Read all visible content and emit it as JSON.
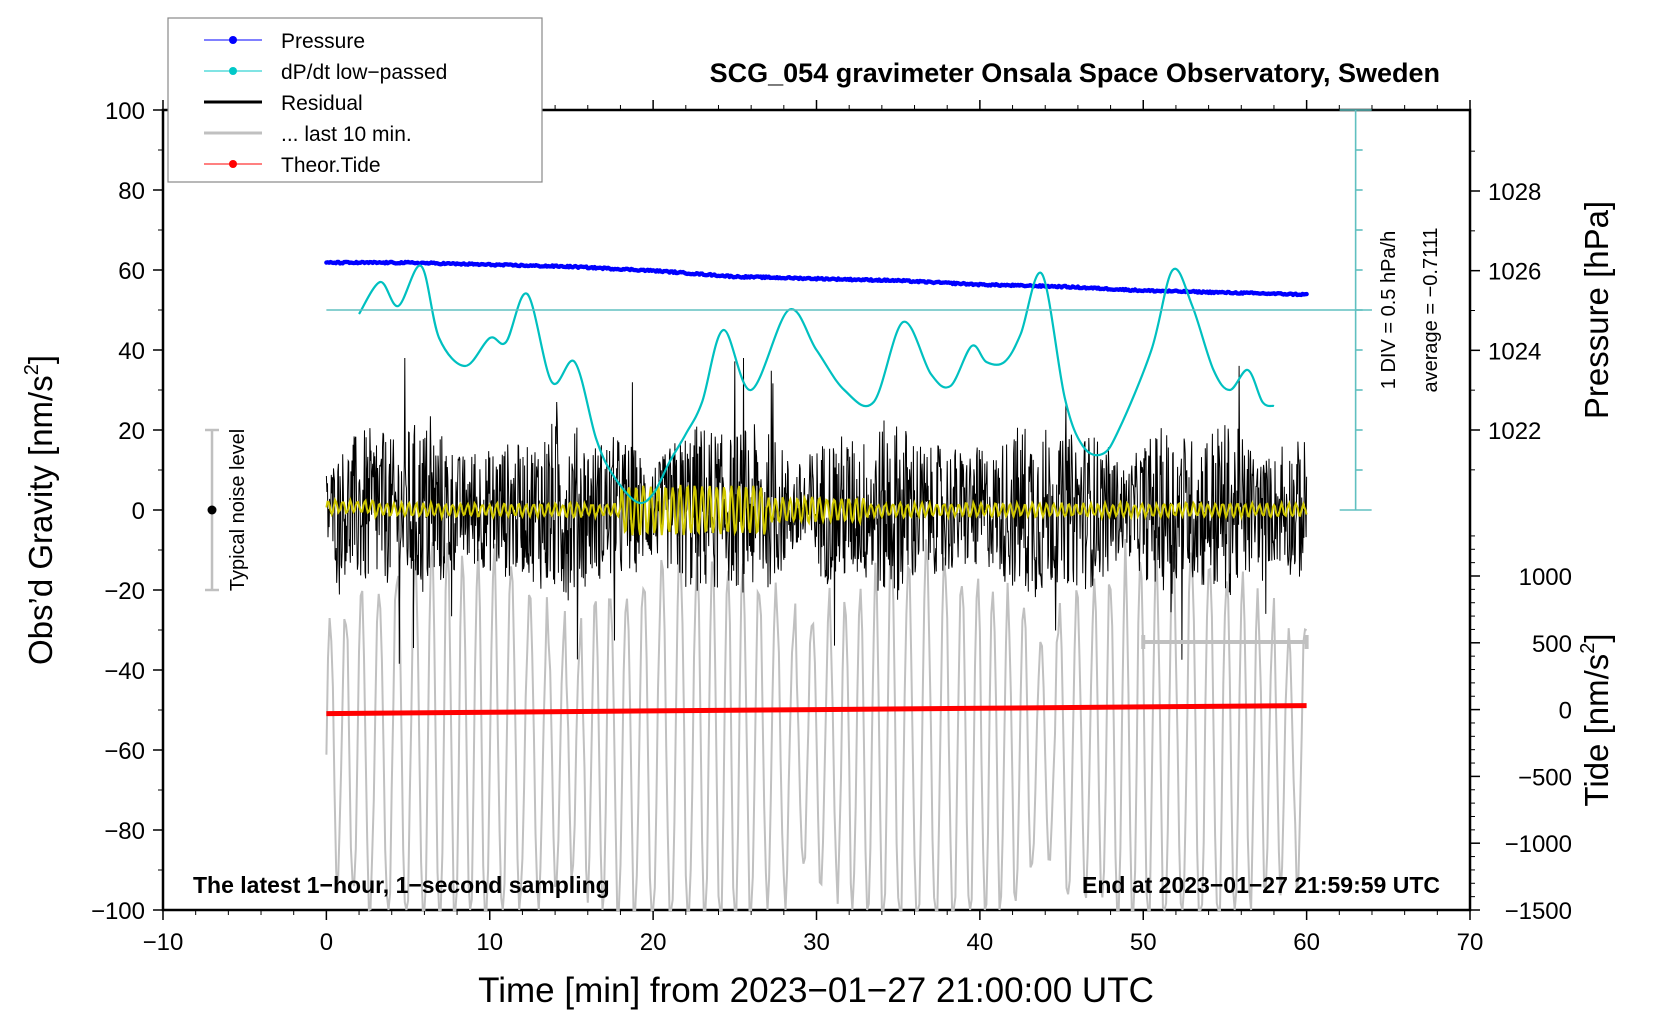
{
  "chart_data": {
    "type": "line",
    "title": "SCG_054 gravimeter Onsala Space Observatory, Sweden",
    "xlabel": "Time [min] from 2023−01−27 21:00:00 UTC",
    "ylabel_left": "Obs’d Gravity [nm/s²]",
    "ylabel_left_main": "Obs’d Gravity [nm/s",
    "ylabel_left_sup": "2",
    "ylabel_left_close": "]",
    "ylabel_right_pressure": "Pressure [hPa]",
    "ylabel_right_tide_main": "Tide [nm/s",
    "ylabel_right_tide_sup": "2",
    "ylabel_right_tide_close": "]",
    "xlim": [
      -10,
      70
    ],
    "ylim": [
      -100,
      100
    ],
    "pressure_lim": [
      1020,
      1030
    ],
    "tide_lim": [
      -1500,
      1500
    ],
    "grid": false,
    "legend_position": "top-left",
    "x_ticks": [
      -10,
      0,
      10,
      20,
      30,
      40,
      50,
      60,
      70
    ],
    "x_tick_labels": [
      "−10",
      "0",
      "10",
      "20",
      "30",
      "40",
      "50",
      "60",
      "70"
    ],
    "y_ticks": [
      100,
      80,
      60,
      40,
      20,
      0,
      -20,
      -40,
      -60,
      -80,
      -100
    ],
    "y_tick_labels": [
      "100",
      "80",
      "60",
      "40",
      "20",
      "0",
      "−20",
      "−40",
      "−60",
      "−80",
      "−100"
    ],
    "pressure_ticks": [
      1028,
      1026,
      1024,
      1022
    ],
    "pressure_tick_labels": [
      "1028",
      "1026",
      "1024",
      "1022"
    ],
    "tide_ticks": [
      1000,
      500,
      0,
      -500,
      -1000,
      -1500
    ],
    "tide_tick_labels": [
      "1000",
      "500",
      "0",
      "−500",
      "−1000",
      "−1500"
    ],
    "legend": [
      {
        "label": "Pressure",
        "color": "#0000ff",
        "marker": "dot"
      },
      {
        "label": "dP/dt low−passed",
        "color": "#00c8c8",
        "marker": "dot"
      },
      {
        "label": "Residual",
        "color": "#000000",
        "marker": "line"
      },
      {
        "label": "... last 10 min.",
        "color": "#c0c0c0",
        "marker": "line"
      },
      {
        "label": "Theor.Tide",
        "color": "#ff0000",
        "marker": "dot"
      }
    ],
    "series": [
      {
        "name": "Pressure",
        "axis": "pressure",
        "color": "#0000ff",
        "x": [
          0,
          5,
          10,
          15,
          20,
          25,
          30,
          35,
          40,
          45,
          50,
          55,
          60
        ],
        "values": [
          1026.2,
          1026.2,
          1026.15,
          1026.1,
          1026.0,
          1025.85,
          1025.8,
          1025.75,
          1025.65,
          1025.6,
          1025.5,
          1025.45,
          1025.4
        ]
      },
      {
        "name": "dP/dt low-passed",
        "axis": "gravity",
        "color": "#00c8c8",
        "x": [
          2.0,
          3.3,
          4.4,
          5.8,
          6.9,
          8.5,
          10.0,
          11.0,
          12.3,
          13.8,
          15.2,
          16.5,
          17.5,
          19.0,
          20.0,
          21.0,
          22.0,
          23.0,
          24.3,
          26.0,
          28.3,
          30.0,
          31.7,
          33.5,
          35.3,
          37.0,
          38.2,
          39.5,
          40.4,
          41.5,
          42.5,
          43.8,
          45.2,
          46.3,
          47.5,
          48.5,
          50.5,
          51.8,
          53.0,
          54.3,
          55.3,
          56.4,
          57.3,
          58.0
        ],
        "values": [
          49,
          57,
          51,
          61,
          43,
          36,
          43,
          42,
          54,
          32,
          37,
          18,
          9,
          2,
          4,
          12,
          19,
          27,
          45,
          30,
          50,
          40,
          30,
          27,
          47,
          34,
          31,
          41,
          37,
          37,
          44,
          59,
          28,
          16,
          14,
          20,
          40,
          60,
          51,
          35,
          30,
          35,
          27,
          26
        ]
      },
      {
        "name": "Residual",
        "axis": "gravity",
        "color": "#000000",
        "x": [
          0,
          60
        ],
        "values": [
          0,
          0
        ],
        "note": "1-second residual noise within approximately ±30 nm/s², occasional spikes to ±40"
      },
      {
        "name": "Residual smoothed",
        "axis": "gravity",
        "color": "#d0c800",
        "x": [
          0,
          60
        ],
        "values": [
          0,
          0
        ],
        "note": "oscillation about 0; largest amplitude (±7) around 18–27 min"
      },
      {
        "name": "... last 10 min.",
        "axis": "gravity",
        "color": "#c0c0c0",
        "note": "last 10 minutes residual replotted, offset to ~-60, amplitude ~±40",
        "x": [
          0,
          60
        ],
        "values": [
          -60,
          -60
        ]
      },
      {
        "name": "Theor.Tide",
        "axis": "tide",
        "color": "#ff0000",
        "x": [
          0,
          10,
          20,
          30,
          40,
          50,
          60
        ],
        "values": [
          -30,
          -20,
          -10,
          0,
          10,
          20,
          30
        ]
      }
    ],
    "annotations": {
      "noise_level_label": "Typical noise level",
      "noise_level_range": [
        -20,
        20
      ],
      "dpdt_scale_label": "1 DIV = 0.5 hPa/h",
      "dpdt_average_label": "average = −0.7111",
      "bottom_left_note": "The latest 1−hour, 1−second sampling",
      "bottom_right_note": "End at 2023−01−27 21:59:59 UTC",
      "last10_range_min": [
        50,
        60
      ]
    }
  }
}
